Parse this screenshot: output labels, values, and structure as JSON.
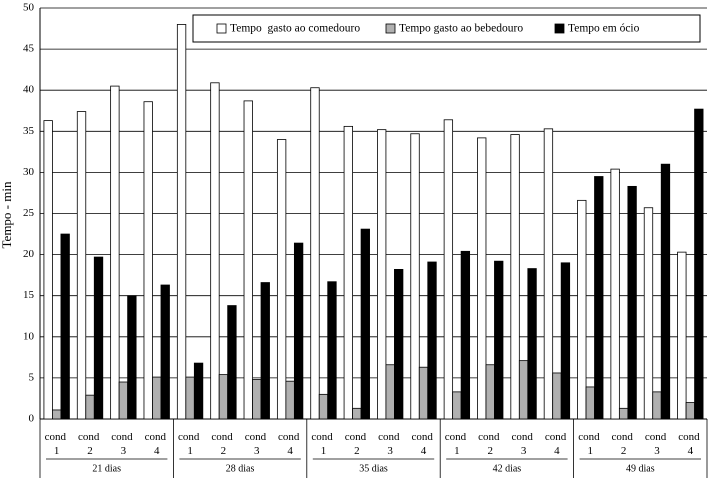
{
  "chart_data": {
    "type": "bar",
    "y_label": "Tempo - min",
    "categories": [
      "cond 1",
      "cond 2",
      "cond 3",
      "cond 4",
      "cond 1",
      "cond 2",
      "cond 3",
      "cond 4",
      "cond 1",
      "cond 2",
      "cond 3",
      "cond 4",
      "cond 1",
      "cond 2",
      "cond 3",
      "cond 4",
      "cond 1",
      "cond 2",
      "cond 3",
      "cond 4"
    ],
    "groups": [
      "21 dias",
      "28 dias",
      "35 dias",
      "42 dias",
      "49 dias"
    ],
    "series": [
      {
        "name": "Tempo  gasto ao comedouro",
        "color": "#ffffff",
        "values": [
          36.3,
          37.4,
          40.5,
          38.6,
          48.0,
          40.9,
          38.7,
          34.0,
          40.3,
          35.6,
          35.2,
          34.7,
          36.4,
          34.2,
          34.6,
          35.3,
          26.6,
          30.4,
          25.7,
          20.3
        ]
      },
      {
        "name": "Tempo gasto ao bebedouro",
        "color": "#b0b0b0",
        "values": [
          1.1,
          2.9,
          4.5,
          5.1,
          5.1,
          5.4,
          4.8,
          4.6,
          3.0,
          1.3,
          6.6,
          6.3,
          3.3,
          6.6,
          7.1,
          5.6,
          3.9,
          1.3,
          3.3,
          2.0
        ]
      },
      {
        "name": "Tempo em ócio",
        "color": "#000000",
        "values": [
          22.5,
          19.7,
          15.0,
          16.3,
          6.8,
          13.8,
          16.6,
          21.4,
          16.7,
          23.1,
          18.2,
          19.1,
          20.4,
          19.2,
          18.3,
          19.0,
          29.5,
          28.3,
          31.0,
          37.7
        ]
      }
    ],
    "ylim": [
      0,
      50
    ],
    "yticks": [
      0,
      5,
      10,
      15,
      20,
      25,
      30,
      35,
      40,
      45,
      50
    ],
    "grid": true,
    "legend": "top-right"
  }
}
